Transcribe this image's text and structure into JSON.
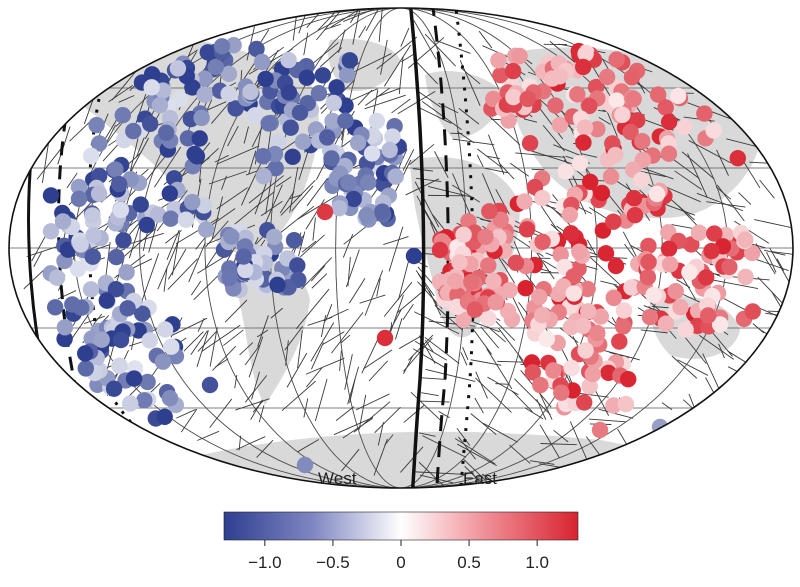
{
  "map": {
    "projection": "equal-area elliptical world projection",
    "region_labels": {
      "west": "West",
      "east": "East"
    },
    "colors": {
      "land": "#d9d9d9",
      "ocean": "#ffffff",
      "track": "#3a3a3a",
      "boundary": "#111111",
      "negative": "#2e3f8f",
      "neutral": "#ffffff",
      "positive": "#d8232f"
    }
  },
  "colorbar": {
    "min": -1.3,
    "max": 1.3,
    "ticks": [
      {
        "value": -1.0,
        "label": "−1.0"
      },
      {
        "value": -0.5,
        "label": "−0.5"
      },
      {
        "value": 0.0,
        "label": "0"
      },
      {
        "value": 0.5,
        "label": "0.5"
      },
      {
        "value": 1.0,
        "label": "1.0"
      }
    ]
  }
}
